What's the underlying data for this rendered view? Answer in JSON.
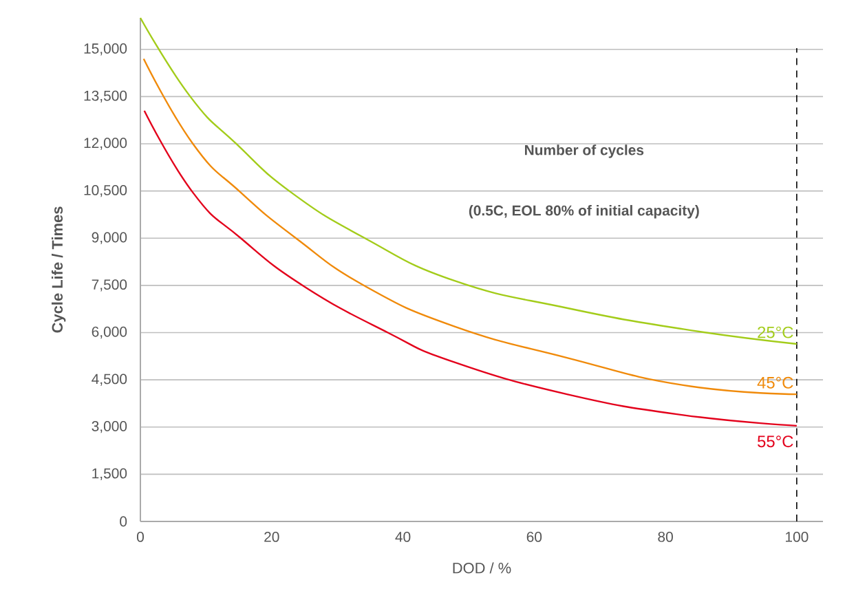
{
  "chart_data": {
    "type": "line",
    "annotations": [
      "Number of cycles",
      "(0.5C, EOL 80% of initial capacity)"
    ],
    "xlabel": "DOD / %",
    "ylabel": "Cycle Life / Times",
    "xlim": [
      0,
      104
    ],
    "ylim": [
      0,
      16000
    ],
    "xticks": [
      0,
      20,
      40,
      60,
      80,
      100
    ],
    "yticks": [
      0,
      {
        "value": 1500,
        "label": "1,500"
      },
      {
        "value": 3000,
        "label": "3,000"
      },
      {
        "value": 4500,
        "label": "4,500"
      },
      {
        "value": 6000,
        "label": "6,000"
      },
      {
        "value": 7500,
        "label": "7,500"
      },
      {
        "value": 9000,
        "label": "9,000"
      },
      {
        "value": 10500,
        "label": "10,500"
      },
      {
        "value": 12000,
        "label": "12,000"
      },
      {
        "value": 13500,
        "label": "13,500"
      },
      {
        "value": 15000,
        "label": "15,000"
      }
    ],
    "grid": "y",
    "marker": "none",
    "line_style": "solid",
    "ref_lines": [
      {
        "axis": "x",
        "value": 100,
        "color": "#000000",
        "line_style": "dashed"
      }
    ],
    "series": [
      {
        "name": "25°C",
        "color": "#a3cc1a",
        "x": [
          0,
          7.6,
          14.6,
          23,
          34.2,
          47.8,
          65,
          82.7,
          100
        ],
        "values": [
          16000,
          13500,
          12000,
          10450,
          9000,
          7650,
          6780,
          6110,
          5640
        ]
      },
      {
        "name": "45°C",
        "color": "#f08a0a",
        "x": [
          0.5,
          8,
          15.3,
          23.7,
          34.2,
          47.8,
          65,
          82.7,
          100
        ],
        "values": [
          14700,
          12000,
          10450,
          9000,
          7480,
          6200,
          5200,
          4330,
          4040
        ]
      },
      {
        "name": "55°C",
        "color": "#e3001b",
        "x": [
          0.6,
          8,
          15.3,
          25,
          37.7,
          47.8,
          65,
          82.7,
          100
        ],
        "values": [
          13050,
          10450,
          9000,
          7460,
          6000,
          5060,
          4040,
          3380,
          3040
        ]
      }
    ]
  }
}
